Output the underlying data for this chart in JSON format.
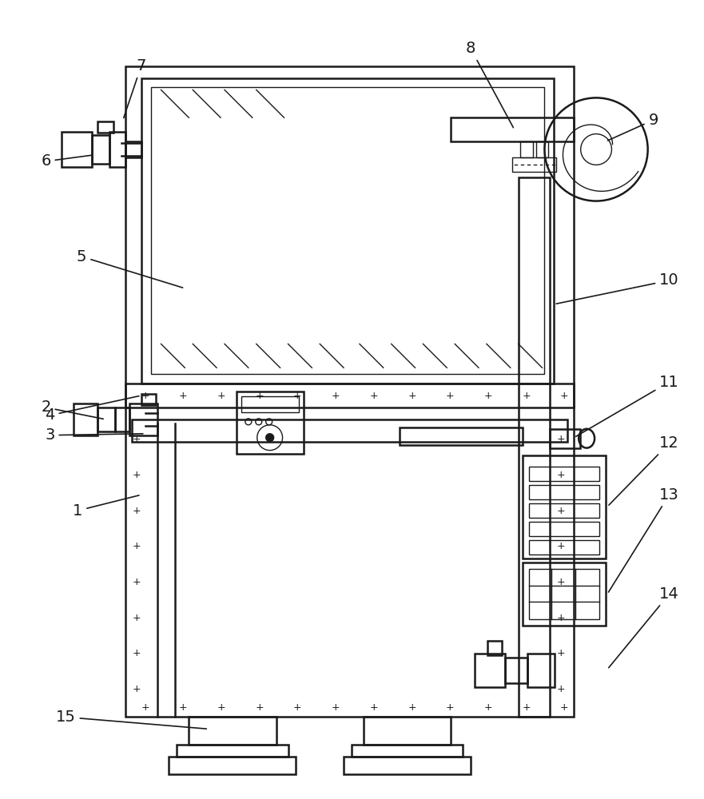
{
  "bg_color": "#ffffff",
  "lc": "#1a1a1a",
  "lw": 1.8,
  "tlw": 1.0,
  "figsize": [
    8.81,
    10.0
  ],
  "dpi": 100,
  "label_fs": 14
}
